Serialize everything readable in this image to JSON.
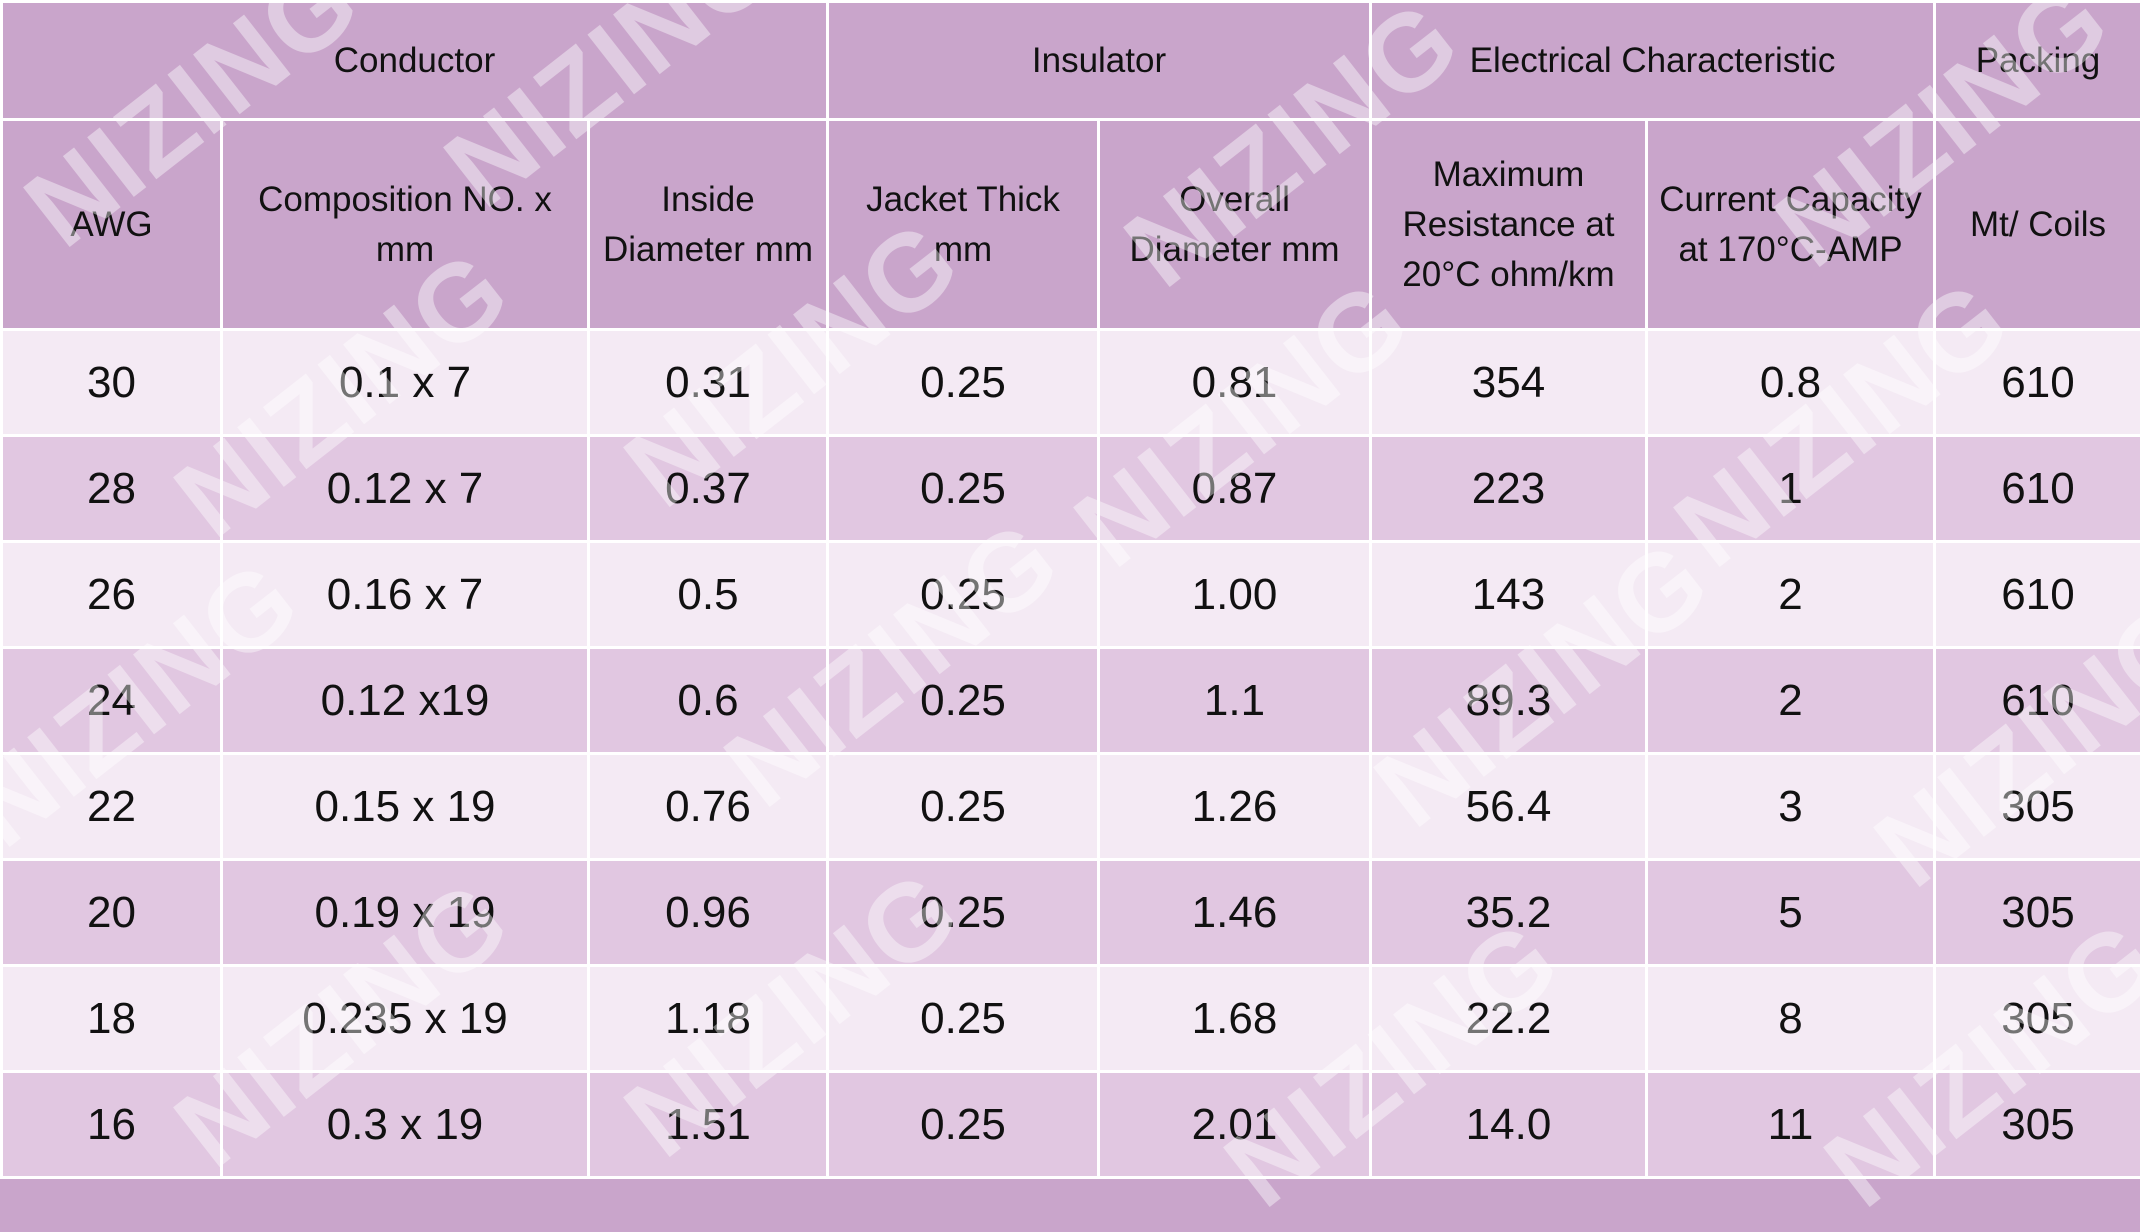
{
  "header": {
    "groups": [
      "Conductor",
      "Insulator",
      "Electrical Characteristic",
      "Packing"
    ],
    "columns": [
      "AWG",
      "Composition NO. x mm",
      "Inside Diameter mm",
      "Jacket Thick mm",
      "Overall Diameter mm",
      "Maximum Resistance at 20°C ohm/km",
      "Current Capacity at 170°C-AMP",
      "Mt/ Coils"
    ]
  },
  "table": {
    "rows": [
      [
        "30",
        "0.1 x 7",
        "0.31",
        "0.25",
        "0.81",
        "354",
        "0.8",
        "610"
      ],
      [
        "28",
        "0.12 x 7",
        "0.37",
        "0.25",
        "0.87",
        "223",
        "1",
        "610"
      ],
      [
        "26",
        "0.16 x 7",
        "0.5",
        "0.25",
        "1.00",
        "143",
        "2",
        "610"
      ],
      [
        "24",
        "0.12 x19",
        "0.6",
        "0.25",
        "1.1",
        "89.3",
        "2",
        "610"
      ],
      [
        "22",
        "0.15 x 19",
        "0.76",
        "0.25",
        "1.26",
        "56.4",
        "3",
        "305"
      ],
      [
        "20",
        "0.19 x 19",
        "0.96",
        "0.25",
        "1.46",
        "35.2",
        "5",
        "305"
      ],
      [
        "18",
        "0.235 x 19",
        "1.18",
        "0.25",
        "1.68",
        "22.2",
        "8",
        "305"
      ],
      [
        "16",
        "0.3 x 19",
        "1.51",
        "0.25",
        "2.01",
        "14.0",
        "11",
        "305"
      ]
    ]
  },
  "watermark": "NIZING"
}
